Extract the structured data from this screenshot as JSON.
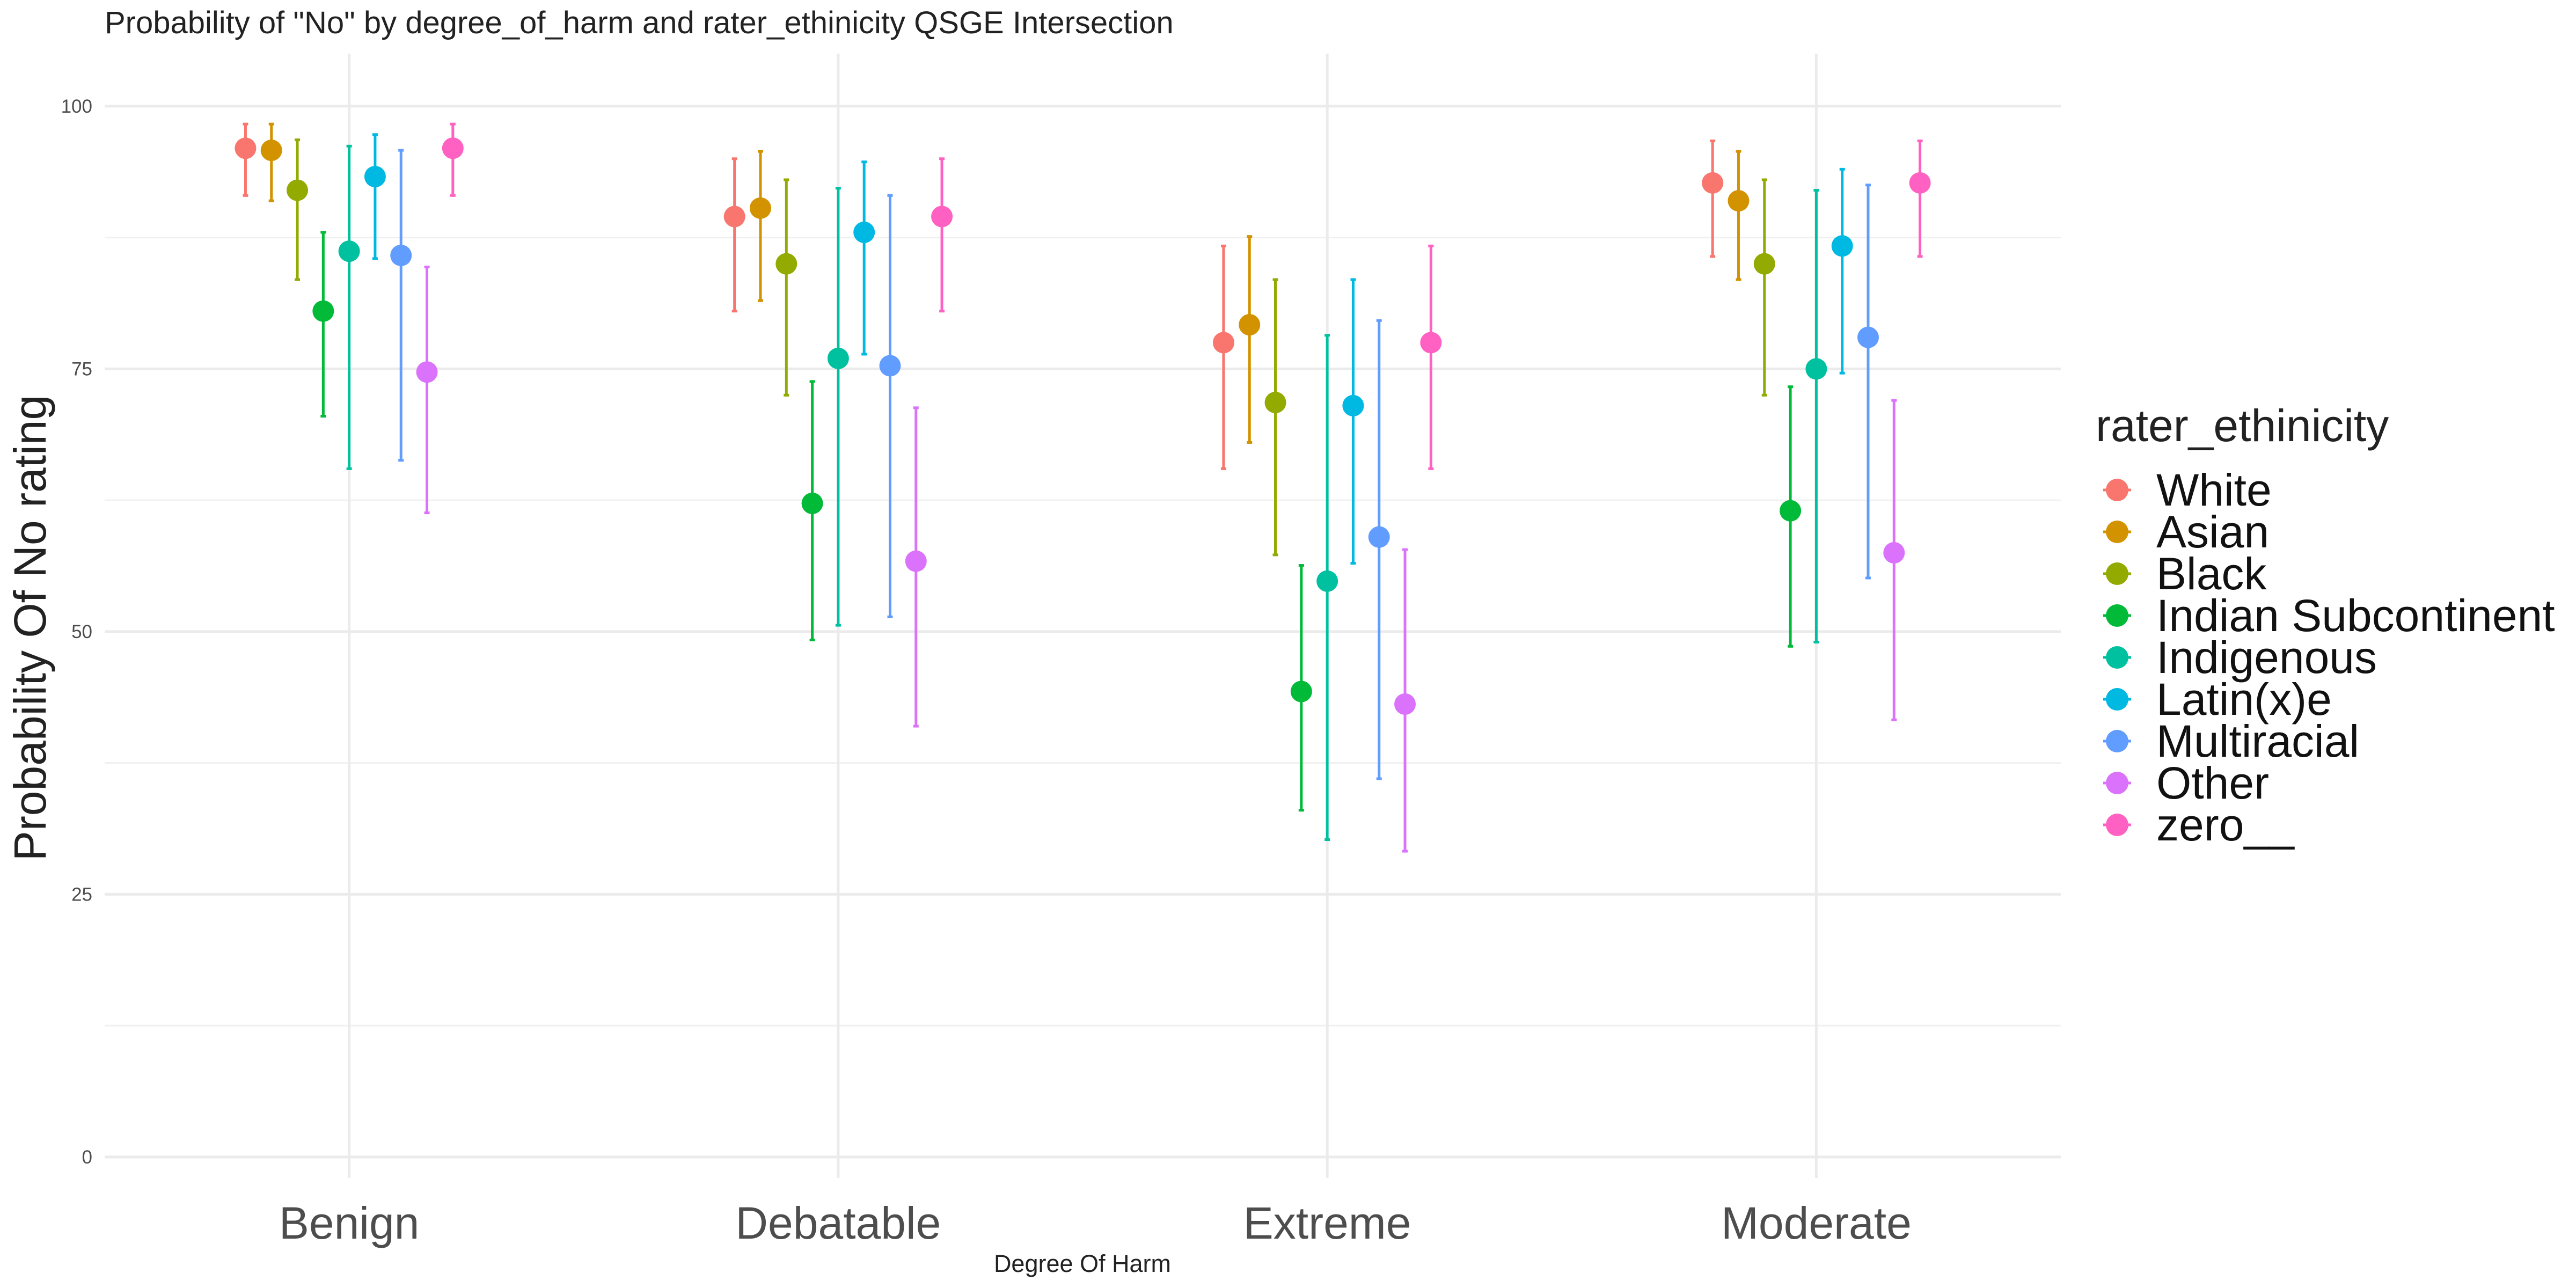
{
  "chart_data": {
    "type": "scatter",
    "title": "Probability of \"No\" by degree_of_harm and  rater_ethinicity  QSGE Intersection",
    "xlabel": "Degree Of Harm",
    "ylabel": "Probability Of No rating",
    "categories": [
      "Benign",
      "Debatable",
      "Extreme",
      "Moderate"
    ],
    "ylim": [
      -2,
      105
    ],
    "yticks": [
      0,
      25,
      50,
      75,
      100
    ],
    "grid": true,
    "legend": {
      "title": "rater_ethinicity",
      "position": "right"
    },
    "series": [
      {
        "name": "White",
        "color": "#F8766D",
        "values": [
          96,
          89.5,
          77.5,
          92.7
        ],
        "lower": [
          91.5,
          80.5,
          65.5,
          85.7
        ],
        "upper": [
          98.3,
          95,
          86.7,
          96.7
        ]
      },
      {
        "name": "Asian",
        "color": "#D39200",
        "values": [
          95.8,
          90.3,
          79.2,
          91
        ],
        "lower": [
          91,
          81.5,
          68,
          83.5
        ],
        "upper": [
          98.3,
          95.7,
          87.6,
          95.7
        ]
      },
      {
        "name": "Black",
        "color": "#93AA00",
        "values": [
          92,
          85,
          71.8,
          85
        ],
        "lower": [
          83.5,
          72.5,
          57.3,
          72.5
        ],
        "upper": [
          96.8,
          93,
          83.5,
          93
        ]
      },
      {
        "name": "Indian Subcontinent",
        "color": "#00BA38",
        "values": [
          80.5,
          62.2,
          44.3,
          61.5
        ],
        "lower": [
          70.5,
          49.2,
          33,
          48.6
        ],
        "upper": [
          88,
          73.8,
          56.3,
          73.3
        ]
      },
      {
        "name": "Indigenous",
        "color": "#00C19F",
        "values": [
          86.2,
          76,
          54.8,
          75
        ],
        "lower": [
          65.5,
          50.6,
          30.2,
          49
        ],
        "upper": [
          96.2,
          92.2,
          78.2,
          92
        ]
      },
      {
        "name": "Latin(x)e",
        "color": "#00B9E3",
        "values": [
          93.3,
          88,
          71.5,
          86.7
        ],
        "lower": [
          85.5,
          76.4,
          56.5,
          74.6
        ],
        "upper": [
          97.3,
          94.7,
          83.5,
          94
        ]
      },
      {
        "name": "Multiracial",
        "color": "#619CFF",
        "values": [
          85.8,
          75.3,
          59,
          78
        ],
        "lower": [
          66.3,
          51.4,
          36,
          55.1
        ],
        "upper": [
          95.8,
          91.5,
          79.6,
          92.5
        ]
      },
      {
        "name": "Other",
        "color": "#DB72FB",
        "values": [
          74.7,
          56.7,
          43.1,
          57.5
        ],
        "lower": [
          61.3,
          41,
          29.1,
          41.6
        ],
        "upper": [
          84.7,
          71.3,
          57.8,
          72
        ]
      },
      {
        "name": "zero__",
        "color": "#FF61C3",
        "values": [
          96,
          89.5,
          77.5,
          92.7
        ],
        "lower": [
          91.5,
          80.5,
          65.5,
          85.7
        ],
        "upper": [
          98.3,
          95,
          86.7,
          96.7
        ]
      }
    ]
  }
}
